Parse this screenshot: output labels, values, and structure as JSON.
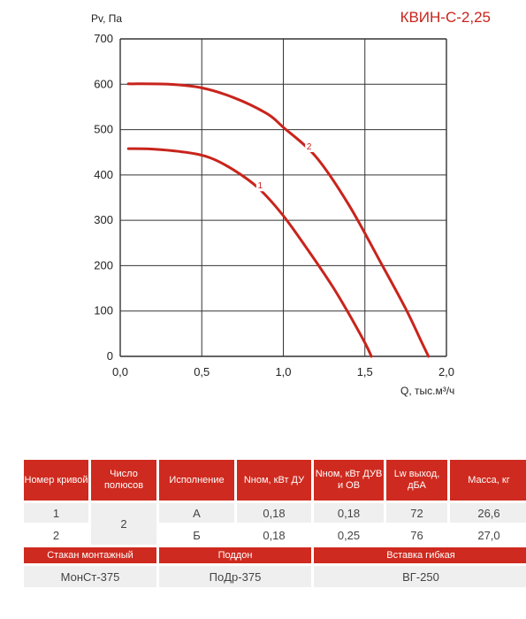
{
  "chart_data": {
    "type": "line",
    "title": "КВИН-С-2,25",
    "xlabel": "Q, тыс.м³/ч",
    "ylabel": "Pv, Па",
    "xlim": [
      0,
      2.0
    ],
    "ylim": [
      0,
      700
    ],
    "xticks": [
      "0,0",
      "0,5",
      "1,0",
      "1,5",
      "2,0"
    ],
    "yticks": [
      "0",
      "100",
      "200",
      "300",
      "400",
      "500",
      "600",
      "700"
    ],
    "grid": true,
    "series": [
      {
        "name": "1",
        "color": "#c8241c",
        "x": [
          0.05,
          0.2,
          0.4,
          0.55,
          0.7,
          0.85,
          1.0,
          1.15,
          1.3,
          1.4,
          1.5,
          1.54
        ],
        "y": [
          458,
          457,
          450,
          438,
          410,
          370,
          310,
          235,
          155,
          95,
          30,
          0
        ]
      },
      {
        "name": "2",
        "color": "#c8241c",
        "x": [
          0.05,
          0.3,
          0.5,
          0.7,
          0.9,
          1.0,
          1.2,
          1.4,
          1.6,
          1.75,
          1.85,
          1.89
        ],
        "y": [
          601,
          600,
          592,
          570,
          535,
          505,
          440,
          335,
          205,
          105,
          30,
          0
        ]
      }
    ]
  },
  "table": {
    "headers": [
      "Номер кривой",
      "Число полюсов",
      "Исполнение",
      "Nном, кВт ДУ",
      "Nном, кВт ДУВ и ОВ",
      "Lw выход, дБА",
      "Масса, кг"
    ],
    "rows": [
      {
        "curve": "1",
        "variant": "А",
        "n_du": "0,18",
        "n_duv": "0,18",
        "lw": "72",
        "mass": "26,6"
      },
      {
        "curve": "2",
        "variant": "Б",
        "n_du": "0,18",
        "n_duv": "0,25",
        "lw": "76",
        "mass": "27,0"
      }
    ],
    "poles": "2",
    "accessories_headers": [
      "Стакан монтажный",
      "Поддон",
      "Вставка гибкая"
    ],
    "accessories_values": [
      "МонСт-375",
      "ПоДр-375",
      "ВГ-250"
    ]
  },
  "colors": {
    "accent": "#c8241c",
    "header_bg": "#cf2a1f",
    "grid": "#333333",
    "shade": "#efefef"
  }
}
